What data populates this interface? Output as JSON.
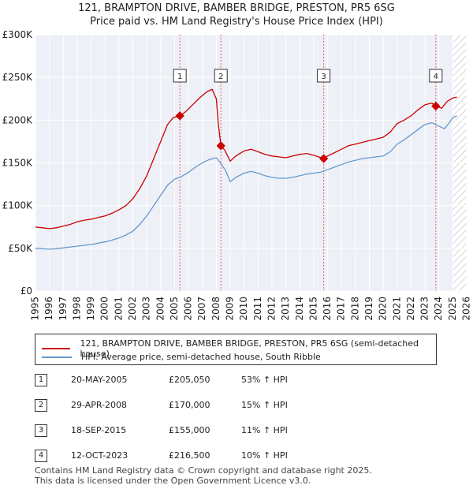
{
  "title": {
    "line1": "121, BRAMPTON DRIVE, BAMBER BRIDGE, PRESTON, PR5 6SG",
    "line2": "Price paid vs. HM Land Registry's House Price Index (HPI)"
  },
  "colors": {
    "property": "#cc0000",
    "hpi": "#6699cc",
    "marker_line": "#e06666"
  },
  "chart_data": {
    "type": "line",
    "xlim": [
      1995,
      2026
    ],
    "ylim": [
      0,
      300000
    ],
    "x_ticks": [
      "1995",
      "1996",
      "1997",
      "1998",
      "1999",
      "2000",
      "2001",
      "2002",
      "2003",
      "2004",
      "2005",
      "2006",
      "2007",
      "2008",
      "2009",
      "2010",
      "2011",
      "2012",
      "2013",
      "2014",
      "2015",
      "2016",
      "2017",
      "2018",
      "2019",
      "2020",
      "2021",
      "2022",
      "2023",
      "2024",
      "2025",
      "2026"
    ],
    "y_ticks": [
      {
        "value": 0,
        "label": "£0"
      },
      {
        "value": 50000,
        "label": "£50K"
      },
      {
        "value": 100000,
        "label": "£100K"
      },
      {
        "value": 150000,
        "label": "£150K"
      },
      {
        "value": 200000,
        "label": "£200K"
      },
      {
        "value": 250000,
        "label": "£250K"
      },
      {
        "value": 300000,
        "label": "£300K"
      }
    ],
    "grid": true,
    "projection_start": 2025.0,
    "series": [
      {
        "name": "121, BRAMPTON DRIVE, BAMBER BRIDGE, PRESTON, PR5 6SG (semi-detached house)",
        "color": "#cc0000",
        "points": [
          [
            1995.0,
            75000
          ],
          [
            1995.5,
            74000
          ],
          [
            1996.0,
            73000
          ],
          [
            1996.5,
            74000
          ],
          [
            1997.0,
            76000
          ],
          [
            1997.5,
            78000
          ],
          [
            1998.0,
            81000
          ],
          [
            1998.5,
            83000
          ],
          [
            1999.0,
            84000
          ],
          [
            1999.5,
            86000
          ],
          [
            2000.0,
            88000
          ],
          [
            2000.5,
            91000
          ],
          [
            2001.0,
            95000
          ],
          [
            2001.5,
            100000
          ],
          [
            2002.0,
            108000
          ],
          [
            2002.5,
            120000
          ],
          [
            2003.0,
            135000
          ],
          [
            2003.5,
            155000
          ],
          [
            2004.0,
            175000
          ],
          [
            2004.5,
            195000
          ],
          [
            2004.9,
            203000
          ],
          [
            2005.38,
            205050
          ],
          [
            2005.8,
            210000
          ],
          [
            2006.3,
            218000
          ],
          [
            2006.8,
            226000
          ],
          [
            2007.3,
            233000
          ],
          [
            2007.7,
            236000
          ],
          [
            2008.0,
            225000
          ],
          [
            2008.15,
            195000
          ],
          [
            2008.33,
            170000
          ],
          [
            2008.6,
            165000
          ],
          [
            2009.0,
            152000
          ],
          [
            2009.4,
            158000
          ],
          [
            2010.0,
            164000
          ],
          [
            2010.5,
            166000
          ],
          [
            2011.0,
            163000
          ],
          [
            2011.5,
            160000
          ],
          [
            2012.0,
            158000
          ],
          [
            2012.5,
            157000
          ],
          [
            2013.0,
            156000
          ],
          [
            2013.5,
            158000
          ],
          [
            2014.0,
            160000
          ],
          [
            2014.5,
            161000
          ],
          [
            2015.0,
            159000
          ],
          [
            2015.72,
            155000
          ],
          [
            2016.0,
            158000
          ],
          [
            2016.5,
            162000
          ],
          [
            2017.0,
            166000
          ],
          [
            2017.5,
            170000
          ],
          [
            2018.0,
            172000
          ],
          [
            2018.5,
            174000
          ],
          [
            2019.0,
            176000
          ],
          [
            2019.5,
            178000
          ],
          [
            2020.0,
            180000
          ],
          [
            2020.5,
            186000
          ],
          [
            2021.0,
            196000
          ],
          [
            2021.5,
            200000
          ],
          [
            2022.0,
            205000
          ],
          [
            2022.5,
            212000
          ],
          [
            2023.0,
            218000
          ],
          [
            2023.5,
            220000
          ],
          [
            2023.78,
            216500
          ],
          [
            2024.2,
            214000
          ],
          [
            2024.6,
            222000
          ],
          [
            2025.0,
            226000
          ],
          [
            2025.3,
            227000
          ]
        ]
      },
      {
        "name": "HPI: Average price, semi-detached house, South Ribble",
        "color": "#6699cc",
        "points": [
          [
            1995.0,
            50000
          ],
          [
            1995.5,
            49500
          ],
          [
            1996.0,
            49000
          ],
          [
            1996.5,
            49500
          ],
          [
            1997.0,
            50500
          ],
          [
            1997.5,
            51500
          ],
          [
            1998.0,
            52500
          ],
          [
            1998.5,
            53500
          ],
          [
            1999.0,
            54500
          ],
          [
            1999.5,
            56000
          ],
          [
            2000.0,
            57500
          ],
          [
            2000.5,
            59500
          ],
          [
            2001.0,
            62000
          ],
          [
            2001.5,
            65500
          ],
          [
            2002.0,
            70000
          ],
          [
            2002.5,
            78000
          ],
          [
            2003.0,
            88000
          ],
          [
            2003.5,
            100000
          ],
          [
            2004.0,
            112000
          ],
          [
            2004.5,
            124000
          ],
          [
            2005.0,
            131000
          ],
          [
            2005.5,
            134000
          ],
          [
            2006.0,
            139000
          ],
          [
            2006.5,
            145000
          ],
          [
            2007.0,
            150000
          ],
          [
            2007.5,
            154000
          ],
          [
            2008.0,
            156000
          ],
          [
            2008.3,
            150000
          ],
          [
            2008.7,
            140000
          ],
          [
            2009.0,
            128000
          ],
          [
            2009.4,
            133000
          ],
          [
            2010.0,
            138000
          ],
          [
            2010.5,
            140000
          ],
          [
            2011.0,
            138000
          ],
          [
            2011.5,
            135000
          ],
          [
            2012.0,
            133000
          ],
          [
            2012.5,
            132000
          ],
          [
            2013.0,
            132000
          ],
          [
            2013.5,
            133000
          ],
          [
            2014.0,
            135000
          ],
          [
            2014.5,
            137000
          ],
          [
            2015.0,
            138000
          ],
          [
            2015.5,
            139000
          ],
          [
            2016.0,
            142000
          ],
          [
            2016.5,
            145000
          ],
          [
            2017.0,
            148000
          ],
          [
            2017.5,
            151000
          ],
          [
            2018.0,
            153000
          ],
          [
            2018.5,
            155000
          ],
          [
            2019.0,
            156000
          ],
          [
            2019.5,
            157000
          ],
          [
            2020.0,
            158000
          ],
          [
            2020.5,
            163000
          ],
          [
            2021.0,
            172000
          ],
          [
            2021.5,
            177000
          ],
          [
            2022.0,
            183000
          ],
          [
            2022.5,
            189000
          ],
          [
            2023.0,
            195000
          ],
          [
            2023.5,
            197000
          ],
          [
            2024.0,
            193000
          ],
          [
            2024.4,
            190000
          ],
          [
            2024.8,
            198000
          ],
          [
            2025.0,
            203000
          ],
          [
            2025.3,
            205000
          ]
        ]
      }
    ],
    "sales": [
      {
        "num": "1",
        "x": 2005.38,
        "price": 205050
      },
      {
        "num": "2",
        "x": 2008.33,
        "price": 170000
      },
      {
        "num": "3",
        "x": 2015.72,
        "price": 155000
      },
      {
        "num": "4",
        "x": 2023.78,
        "price": 216500
      }
    ],
    "marker_label_value": 252000
  },
  "legend": {
    "property": "121, BRAMPTON DRIVE, BAMBER BRIDGE, PRESTON, PR5 6SG (semi-detached house)",
    "hpi": "HPI: Average price, semi-detached house, South Ribble"
  },
  "sales_table": [
    {
      "num": "1",
      "date": "20-MAY-2005",
      "price": "£205,050",
      "hpi": "53% ↑ HPI"
    },
    {
      "num": "2",
      "date": "29-APR-2008",
      "price": "£170,000",
      "hpi": "15% ↑ HPI"
    },
    {
      "num": "3",
      "date": "18-SEP-2015",
      "price": "£155,000",
      "hpi": "11% ↑ HPI"
    },
    {
      "num": "4",
      "date": "12-OCT-2023",
      "price": "£216,500",
      "hpi": "10% ↑ HPI"
    }
  ],
  "footer": {
    "line1": "Contains HM Land Registry data © Crown copyright and database right 2025.",
    "line2": "This data is licensed under the Open Government Licence v3.0."
  }
}
